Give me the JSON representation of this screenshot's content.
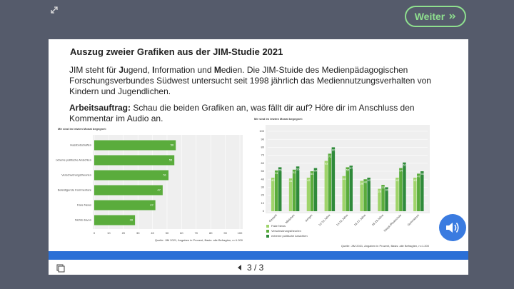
{
  "nav": {
    "button": "Weiter",
    "page": "3 / 3"
  },
  "slide": {
    "title": "Auszug zweier Grafiken aus der JIM-Studie 2021",
    "intro": [
      "JIM steht für ",
      "J",
      "ugend, ",
      "I",
      "nformation und ",
      "M",
      "edien. Die JIM-Stuide des Medienpädagogischen Forschungsverbundes Südwest untersucht seit 1998 jährlich das Mediennutzungsverhalten von Kindern und Jugendlichen."
    ],
    "task_label": "Arbeitsauftrag:",
    "task": " Schau die beiden Grafiken an, was fällt dir auf? Höre dir im Anschluss den Kommentar im Audio an."
  },
  "charts": [
    {
      "type": "bar",
      "orientation": "horizontal",
      "title": "Mir sind im letzten Monat begegnet:",
      "categories": [
        "Hassbotschaften",
        "Extreme politische Ansichten",
        "Verschwörungstheorien",
        "Beleidigende Kommentare",
        "Fake News",
        "Nichts davon"
      ],
      "values": [
        56,
        55,
        51,
        47,
        42,
        28
      ],
      "color": "#5aac3c",
      "xlim": [
        0,
        100
      ],
      "xticks": [
        0,
        10,
        20,
        30,
        40,
        50,
        60,
        70,
        80,
        90,
        100
      ],
      "grid": true,
      "source": "Quelle: JIM 2021, Angaben in Prozent, Basis: alle Befragten, n=1.200"
    },
    {
      "type": "bar",
      "orientation": "vertical",
      "title": "Mir sind im letzten Monat begegnet:",
      "categories": [
        "Gesamt",
        "Mädchen",
        "Jungen",
        "12-13 Jahre",
        "14-15 Jahre",
        "16-17 Jahre",
        "18-19 Jahre",
        "Haupt-/Realschule",
        "Gymnasium"
      ],
      "series": [
        {
          "name": "Fake News",
          "color": "#9fd46a",
          "values": [
            42,
            41,
            42,
            63,
            44,
            38,
            28,
            42,
            42
          ]
        },
        {
          "name": "Verschwörungstheorien",
          "color": "#5aac3c",
          "values": [
            51,
            52,
            50,
            72,
            55,
            40,
            33,
            54,
            47
          ]
        },
        {
          "name": "extreme politische Ansichten",
          "color": "#2f8a3a",
          "values": [
            55,
            56,
            54,
            80,
            57,
            42,
            30,
            61,
            50
          ]
        }
      ],
      "ylim": [
        0,
        100
      ],
      "yticks": [
        0,
        10,
        20,
        30,
        40,
        50,
        60,
        70,
        80,
        90,
        100
      ],
      "grid": true,
      "source": "Quelle: JIM 2021, Angaben in Prozent, Basis: alle Befragten, n=1.200"
    }
  ]
}
